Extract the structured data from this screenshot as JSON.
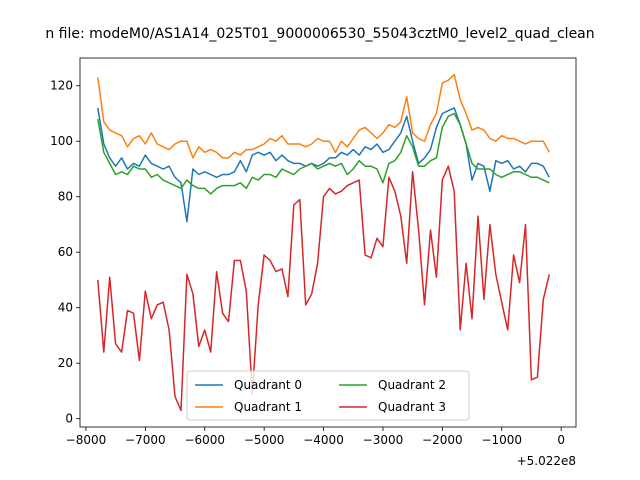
{
  "figure": {
    "title": "n file: modeM0/AS1A14_025T01_9000006530_55043cztM0_level2_quad_clean"
  },
  "chart_data": {
    "type": "line",
    "title": "n file: modeM0/AS1A14_025T01_9000006530_55043cztM0_level2_quad_clean",
    "xlabel": "",
    "ylabel": "",
    "x_offset_label": "+5.022e8",
    "xlim": [
      -8100,
      250
    ],
    "ylim": [
      -3,
      130
    ],
    "xticks": [
      -8000,
      -7000,
      -6000,
      -5000,
      -4000,
      -3000,
      -2000,
      -1000,
      0
    ],
    "xtick_labels": [
      "−8000",
      "−7000",
      "−6000",
      "−5000",
      "−4000",
      "−3000",
      "−2000",
      "−1000",
      "0"
    ],
    "yticks": [
      0,
      20,
      40,
      60,
      80,
      100,
      120
    ],
    "ytick_labels": [
      "0",
      "20",
      "40",
      "60",
      "80",
      "100",
      "120"
    ],
    "grid": false,
    "legend": {
      "placement": "lower-center",
      "columns": 2
    },
    "x": [
      -7800,
      -7700,
      -7600,
      -7500,
      -7400,
      -7300,
      -7200,
      -7100,
      -7000,
      -6900,
      -6800,
      -6700,
      -6600,
      -6500,
      -6400,
      -6300,
      -6200,
      -6100,
      -6000,
      -5900,
      -5800,
      -5700,
      -5600,
      -5500,
      -5400,
      -5300,
      -5200,
      -5100,
      -5000,
      -4900,
      -4800,
      -4700,
      -4600,
      -4500,
      -4400,
      -4300,
      -4200,
      -4100,
      -4000,
      -3900,
      -3800,
      -3700,
      -3600,
      -3500,
      -3400,
      -3300,
      -3200,
      -3100,
      -3000,
      -2900,
      -2800,
      -2700,
      -2600,
      -2500,
      -2400,
      -2300,
      -2200,
      -2100,
      -2000,
      -1900,
      -1800,
      -1700,
      -1600,
      -1500,
      -1400,
      -1300,
      -1200,
      -1100,
      -1000,
      -900,
      -800,
      -700,
      -600,
      -500,
      -400,
      -300,
      -200
    ],
    "series": [
      {
        "name": "Quadrant 0",
        "color": "#1f77b4",
        "values": [
          112,
          99,
          94,
          91,
          94,
          90,
          92,
          91,
          95,
          92,
          91,
          90,
          91,
          87,
          85,
          71,
          90,
          88,
          89,
          88,
          87,
          88,
          88,
          89,
          93,
          89,
          95,
          96,
          95,
          96,
          93,
          95,
          93,
          92,
          92,
          91,
          92,
          91,
          92,
          94,
          94,
          96,
          95,
          97,
          95,
          98,
          97,
          99,
          96,
          97,
          100,
          103,
          109,
          100,
          92,
          94,
          97,
          105,
          110,
          111,
          112,
          106,
          99,
          86,
          92,
          91,
          82,
          93,
          92,
          93,
          90,
          91,
          89,
          92,
          92,
          91,
          87
        ]
      },
      {
        "name": "Quadrant 1",
        "color": "#ff7f0e",
        "values": [
          123,
          107,
          104,
          103,
          102,
          98,
          101,
          102,
          99,
          103,
          99,
          98,
          97,
          99,
          100,
          100,
          94,
          98,
          96,
          97,
          96,
          94,
          94,
          96,
          95,
          97,
          97,
          98,
          99,
          101,
          100,
          102,
          99,
          99,
          99,
          98,
          99,
          101,
          100,
          100,
          96,
          100,
          98,
          101,
          104,
          105,
          103,
          101,
          103,
          106,
          105,
          107,
          116,
          103,
          101,
          100,
          106,
          110,
          121,
          122,
          124,
          115,
          110,
          104,
          105,
          104,
          101,
          100,
          102,
          101,
          101,
          100,
          99,
          100,
          100,
          100,
          96
        ]
      },
      {
        "name": "Quadrant 2",
        "color": "#2ca02c",
        "values": [
          108,
          96,
          92,
          88,
          89,
          88,
          91,
          90,
          90,
          87,
          88,
          86,
          85,
          84,
          83,
          86,
          84,
          83,
          83,
          81,
          83,
          84,
          84,
          84,
          85,
          83,
          87,
          86,
          88,
          88,
          87,
          90,
          89,
          88,
          90,
          91,
          92,
          90,
          91,
          92,
          91,
          92,
          88,
          90,
          93,
          91,
          91,
          90,
          85,
          92,
          93,
          96,
          102,
          98,
          91,
          91,
          93,
          94,
          105,
          109,
          110,
          106,
          99,
          92,
          90,
          90,
          90,
          88,
          87,
          88,
          89,
          89,
          88,
          87,
          87,
          86,
          85
        ]
      },
      {
        "name": "Quadrant 3",
        "color": "#d62728",
        "values": [
          50,
          24,
          51,
          27,
          24,
          39,
          38,
          21,
          46,
          36,
          41,
          42,
          32,
          8,
          3,
          52,
          45,
          26,
          32,
          24,
          53,
          38,
          35,
          57,
          57,
          46,
          9,
          41,
          59,
          57,
          53,
          54,
          44,
          77,
          79,
          41,
          45,
          56,
          80,
          83,
          81,
          82,
          84,
          85,
          86,
          59,
          58,
          65,
          62,
          87,
          82,
          73,
          56,
          89,
          68,
          41,
          68,
          51,
          86,
          91,
          82,
          32,
          56,
          36,
          73,
          43,
          70,
          52,
          42,
          32,
          59,
          49,
          70,
          14,
          15,
          43,
          52
        ]
      }
    ]
  }
}
